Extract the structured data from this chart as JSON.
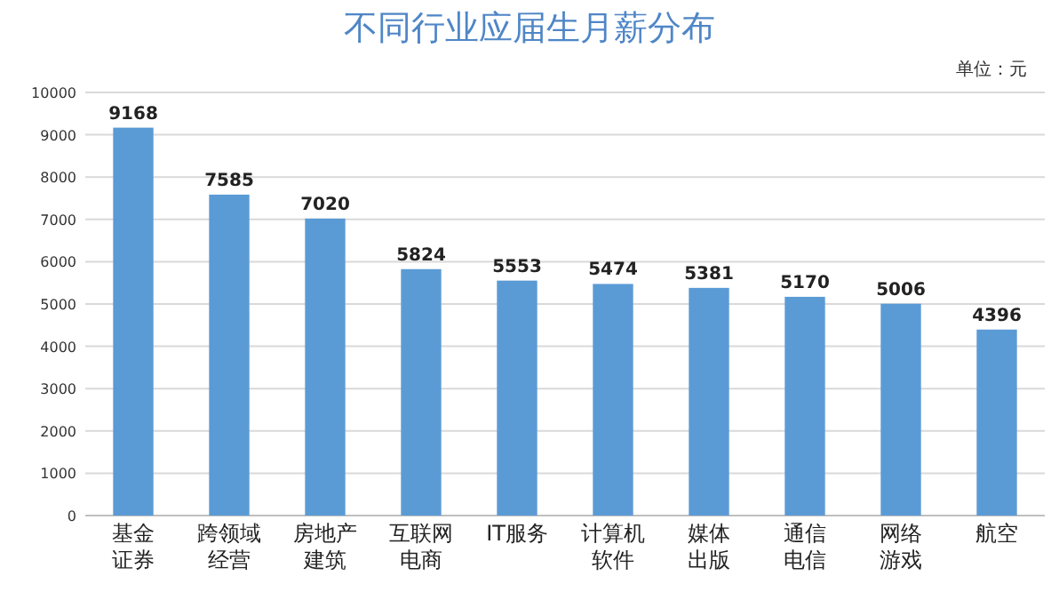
{
  "chart_data": {
    "type": "bar",
    "title": "不同行业应届生月薪分布",
    "annotations": [
      "单位：元"
    ],
    "categories": [
      "基金证券",
      "跨领域经营",
      "房地产建筑",
      "互联网电商",
      "IT服务",
      "计算机软件",
      "媒体出版",
      "通信电信",
      "网络游戏",
      "航空"
    ],
    "values": [
      9168,
      7585,
      7020,
      5824,
      5553,
      5474,
      5381,
      5170,
      5006,
      4396
    ],
    "color": "#5b9bd5",
    "ylim": [
      0,
      10000
    ],
    "yticks": [
      0,
      1000,
      2000,
      3000,
      4000,
      5000,
      6000,
      7000,
      8000,
      9000,
      10000
    ],
    "grid": "y",
    "data_labels": true
  }
}
